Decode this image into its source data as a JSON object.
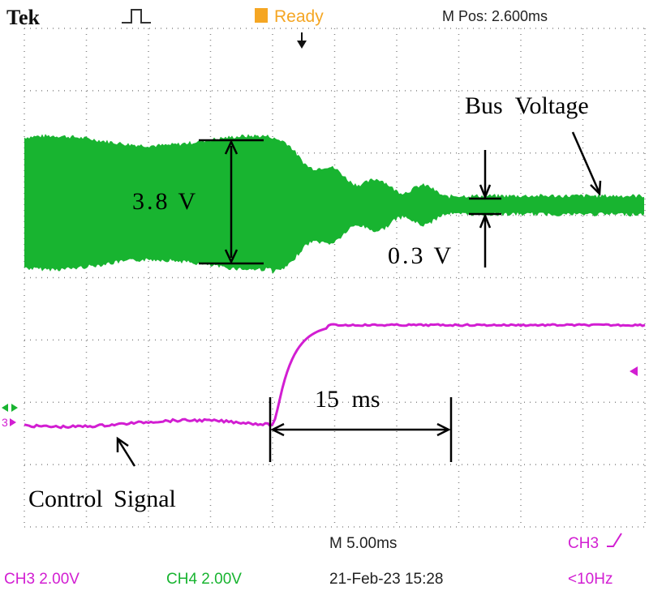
{
  "header": {
    "brand": "Tek",
    "status": "Ready",
    "position": "M Pos: 2.600ms"
  },
  "annotations": {
    "bus": "Bus Voltage",
    "amplitude_before": "3.8 V",
    "amplitude_after": "0.3 V",
    "delay": "15 ms",
    "control": "Control Signal"
  },
  "markers": {
    "ch3": "3"
  },
  "footer": {
    "timebase": "M 5.00ms",
    "trigger_channel": "CH3",
    "ch3": "CH3 2.00V",
    "ch4": "CH4 2.00V",
    "datetime": "21-Feb-23 15:28",
    "frequency": "<10Hz"
  }
}
